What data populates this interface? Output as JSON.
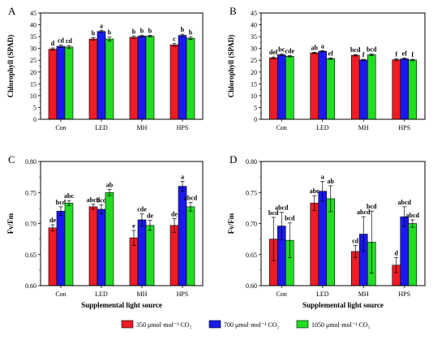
{
  "chart_data": [
    {
      "type": "bar",
      "panel": "A",
      "ylabel": "Chlorophyll (SPAD)",
      "xlabel": "",
      "ylim": [
        0,
        45
      ],
      "yticks": [
        0,
        5,
        10,
        15,
        20,
        25,
        30,
        35,
        40,
        45
      ],
      "categories": [
        "Con",
        "LED",
        "MH",
        "HPS"
      ],
      "series": [
        {
          "name": "350 μmol·mol⁻¹ CO₂",
          "values": [
            29.7,
            34.0,
            34.7,
            31.5
          ],
          "errors": [
            0.5,
            0.5,
            0.5,
            0.6
          ],
          "letters": [
            "d",
            "b",
            "b",
            "c"
          ]
        },
        {
          "name": "700 μmol·mol⁻¹ CO₂",
          "values": [
            30.9,
            37.2,
            35.2,
            35.5
          ],
          "errors": [
            0.5,
            0.5,
            0.4,
            0.5
          ],
          "letters": [
            "cd",
            "a",
            "b",
            "b"
          ]
        },
        {
          "name": "1050 μmol·mol⁻¹ CO₂",
          "values": [
            30.6,
            34.0,
            35.2,
            34.3
          ],
          "errors": [
            0.6,
            0.8,
            0.4,
            0.5
          ],
          "letters": [
            "cd",
            "b",
            "b",
            "b"
          ]
        }
      ]
    },
    {
      "type": "bar",
      "panel": "B",
      "ylabel": "Chlorophyll (SPAD)",
      "xlabel": "",
      "ylim": [
        0,
        45
      ],
      "yticks": [
        0,
        5,
        10,
        15,
        20,
        25,
        30,
        35,
        40,
        45
      ],
      "categories": [
        "Con",
        "LED",
        "MH",
        "HPS"
      ],
      "series": [
        {
          "name": "350 μmol·mol⁻¹ CO₂",
          "values": [
            26.0,
            28.1,
            27.1,
            25.2
          ],
          "errors": [
            0.4,
            0.3,
            0.3,
            0.4
          ],
          "letters": [
            "def",
            "ab",
            "bcd",
            "f"
          ]
        },
        {
          "name": "700 μmol·mol⁻¹ CO₂",
          "values": [
            27.3,
            28.8,
            25.1,
            25.6
          ],
          "errors": [
            0.3,
            0.3,
            0.3,
            0.4
          ],
          "letters": [
            "bc",
            "a",
            "f",
            "ef"
          ]
        },
        {
          "name": "1050 μmol·mol⁻¹ CO₂",
          "values": [
            26.7,
            25.7,
            27.3,
            25.1
          ],
          "errors": [
            0.3,
            0.3,
            0.3,
            0.3
          ],
          "letters": [
            "cde",
            "ef",
            "bcd",
            "f"
          ]
        }
      ]
    },
    {
      "type": "bar",
      "panel": "C",
      "ylabel": "Fv/Fm",
      "xlabel": "Supplemental light source",
      "ylim": [
        0.6,
        0.8
      ],
      "yticks": [
        0.6,
        0.65,
        0.7,
        0.75,
        0.8
      ],
      "tick_labels": [
        "0.60",
        "0.65",
        "0.70",
        "0.75",
        "0.80"
      ],
      "categories": [
        "Con",
        "LED",
        "MH",
        "HPS"
      ],
      "series": [
        {
          "name": "350 μmol·mol⁻¹ CO₂",
          "values": [
            0.693,
            0.727,
            0.677,
            0.697
          ],
          "errors": [
            0.005,
            0.004,
            0.012,
            0.011
          ],
          "letters": [
            "de",
            "abcd",
            "e",
            "de"
          ]
        },
        {
          "name": "700 μmol·mol⁻¹ CO₂",
          "values": [
            0.72,
            0.723,
            0.706,
            0.76
          ],
          "errors": [
            0.007,
            0.007,
            0.01,
            0.008
          ],
          "letters": [
            "bcd",
            "bcd",
            "cde",
            "a"
          ]
        },
        {
          "name": "1050 μmol·mol⁻¹ CO₂",
          "values": [
            0.733,
            0.75,
            0.697,
            0.727
          ],
          "errors": [
            0.004,
            0.005,
            0.008,
            0.007
          ],
          "letters": [
            "abc",
            "ab",
            "de",
            "abcd"
          ]
        }
      ]
    },
    {
      "type": "bar",
      "panel": "D",
      "ylabel": "Fv/Fm",
      "xlabel": "Supplemental light source",
      "ylim": [
        0.6,
        0.8
      ],
      "yticks": [
        0.6,
        0.65,
        0.7,
        0.75,
        0.8
      ],
      "tick_labels": [
        "0.60",
        "0.65",
        "0.70",
        "0.75",
        "0.80"
      ],
      "categories": [
        "Con",
        "LED",
        "MH",
        "HPS"
      ],
      "series": [
        {
          "name": "350 μmol·mol⁻¹ CO₂",
          "values": [
            0.675,
            0.733,
            0.655,
            0.633
          ],
          "errors": [
            0.035,
            0.012,
            0.01,
            0.012
          ],
          "letters": [
            "bcd",
            "abc",
            "cd",
            "d"
          ]
        },
        {
          "name": "700 μmol·mol⁻¹ CO₂",
          "values": [
            0.696,
            0.752,
            0.683,
            0.711
          ],
          "errors": [
            0.022,
            0.016,
            0.028,
            0.016
          ],
          "letters": [
            "abcd",
            "a",
            "abcd",
            "abcd"
          ]
        },
        {
          "name": "1050 μmol·mol⁻¹ CO₂",
          "values": [
            0.673,
            0.74,
            0.67,
            0.7
          ],
          "errors": [
            0.028,
            0.021,
            0.05,
            0.006
          ],
          "letters": [
            "bcd",
            "ab",
            "bcd",
            "abcd"
          ]
        }
      ]
    }
  ],
  "colors": {
    "series": [
      "#ee1c25",
      "#1a1aee",
      "#22dd22"
    ],
    "outline": "#000000"
  },
  "legend": {
    "items": [
      "350 μmol·mol⁻¹ CO₂",
      "700 μmol·mol⁻¹ CO₂",
      "1050 μmol·mol⁻¹ CO₂"
    ]
  }
}
